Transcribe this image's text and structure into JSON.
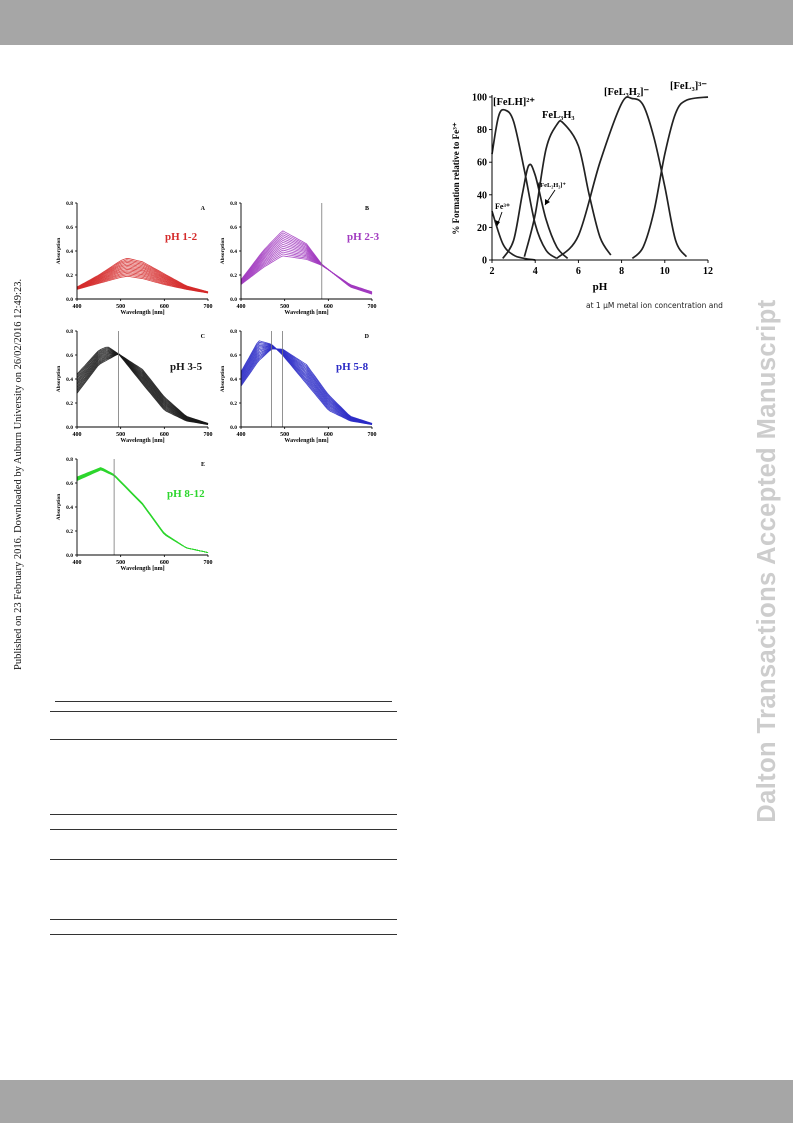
{
  "side_text": "Published on 23 February 2016. Downloaded by Auburn University on 26/02/2016 12:49:23.",
  "watermark": "Dalton Transactions Accepted Manuscript",
  "text_fragment": "at 1 µM metal ion concentration and",
  "colors": {
    "red": "#d52b2b",
    "purple": "#a23bc0",
    "black": "#1a1a1a",
    "blue": "#2b2bc6",
    "green": "#2ed62e",
    "bar": "#a6a6a6",
    "watermark": "#cdcdcd"
  },
  "spectra_panels": [
    {
      "letter": "A",
      "label": "pH 1-2",
      "color": "#d52b2b",
      "x_label": "Wavelength [nm]",
      "y_label": "Absorption",
      "x_ticks": [
        "400",
        "500",
        "600",
        "700"
      ],
      "y_ticks": [
        "0.0",
        "0.2",
        "0.4",
        "0.6",
        "0.8"
      ],
      "xlim": [
        400,
        700
      ],
      "ylim": [
        0,
        0.8
      ],
      "isosbestic_nm": []
    },
    {
      "letter": "B",
      "label": "pH 2-3",
      "color": "#a23bc0",
      "x_label": "Wavelength [nm]",
      "y_label": "Absorption",
      "x_ticks": [
        "400",
        "500",
        "600",
        "700"
      ],
      "y_ticks": [
        "0.0",
        "0.2",
        "0.4",
        "0.6",
        "0.8"
      ],
      "xlim": [
        400,
        700
      ],
      "ylim": [
        0,
        0.8
      ],
      "isosbestic_nm": [
        585
      ]
    },
    {
      "letter": "C",
      "label": "pH 3-5",
      "color": "#1a1a1a",
      "x_label": "Wavelength [nm]",
      "y_label": "Absorption",
      "x_ticks": [
        "400",
        "500",
        "600",
        "700"
      ],
      "y_ticks": [
        "0.0",
        "0.2",
        "0.4",
        "0.6",
        "0.8"
      ],
      "xlim": [
        400,
        700
      ],
      "ylim": [
        0,
        0.8
      ],
      "isosbestic_nm": [
        495
      ]
    },
    {
      "letter": "D",
      "label": "pH 5-8",
      "color": "#2b2bc6",
      "x_label": "Wavelength [nm]",
      "y_label": "Absorption",
      "x_ticks": [
        "400",
        "500",
        "600",
        "700"
      ],
      "y_ticks": [
        "0.0",
        "0.2",
        "0.4",
        "0.6",
        "0.8"
      ],
      "xlim": [
        400,
        700
      ],
      "ylim": [
        0,
        0.8
      ],
      "isosbestic_nm": [
        470,
        495
      ]
    },
    {
      "letter": "E",
      "label": "pH 8-12",
      "color": "#2ed62e",
      "x_label": "Wavelength [nm]",
      "y_label": "Absorption",
      "x_ticks": [
        "400",
        "500",
        "600",
        "700"
      ],
      "y_ticks": [
        "0.0",
        "0.2",
        "0.4",
        "0.6",
        "0.8"
      ],
      "xlim": [
        400,
        700
      ],
      "ylim": [
        0,
        0.8
      ],
      "isosbestic_nm": [
        485
      ]
    }
  ],
  "chart_data": [
    {
      "type": "line",
      "title": "A",
      "annotation": "pH 1-2",
      "xlabel": "Wavelength [nm]",
      "ylabel": "Absorption",
      "xlim": [
        400,
        700
      ],
      "ylim": [
        0,
        0.8
      ],
      "series": [
        {
          "x": [
            400,
            450,
            500,
            515,
            550,
            600,
            650,
            700
          ],
          "y": [
            0.08,
            0.13,
            0.18,
            0.19,
            0.17,
            0.12,
            0.08,
            0.05
          ]
        },
        {
          "x": [
            400,
            450,
            500,
            515,
            550,
            600,
            650,
            700
          ],
          "y": [
            0.1,
            0.2,
            0.32,
            0.34,
            0.31,
            0.21,
            0.11,
            0.06
          ]
        }
      ]
    },
    {
      "type": "line",
      "title": "B",
      "annotation": "pH 2-3",
      "xlabel": "Wavelength [nm]",
      "ylabel": "Absorption",
      "xlim": [
        400,
        700
      ],
      "ylim": [
        0,
        0.8
      ],
      "series": [
        {
          "x": [
            400,
            450,
            495,
            550,
            585,
            650,
            700
          ],
          "y": [
            0.12,
            0.26,
            0.36,
            0.33,
            0.28,
            0.12,
            0.06
          ]
        },
        {
          "x": [
            400,
            450,
            495,
            550,
            585,
            650,
            700
          ],
          "y": [
            0.16,
            0.4,
            0.57,
            0.46,
            0.29,
            0.1,
            0.04
          ]
        }
      ]
    },
    {
      "type": "line",
      "title": "C",
      "annotation": "pH 3-5",
      "xlabel": "Wavelength [nm]",
      "ylabel": "Absorption",
      "xlim": [
        400,
        700
      ],
      "ylim": [
        0,
        0.8
      ],
      "series": [
        {
          "x": [
            400,
            450,
            495,
            550,
            600,
            650,
            700
          ],
          "y": [
            0.28,
            0.52,
            0.61,
            0.48,
            0.25,
            0.09,
            0.03
          ]
        },
        {
          "x": [
            400,
            450,
            470,
            495,
            550,
            600,
            650,
            700
          ],
          "y": [
            0.44,
            0.64,
            0.67,
            0.61,
            0.36,
            0.14,
            0.05,
            0.02
          ]
        }
      ]
    },
    {
      "type": "line",
      "title": "D",
      "annotation": "pH 5-8",
      "xlabel": "Wavelength [nm]",
      "ylabel": "Absorption",
      "xlim": [
        400,
        700
      ],
      "ylim": [
        0,
        0.8
      ],
      "series": [
        {
          "x": [
            400,
            440,
            470,
            495,
            550,
            600,
            650,
            700
          ],
          "y": [
            0.46,
            0.72,
            0.69,
            0.6,
            0.36,
            0.14,
            0.05,
            0.02
          ]
        },
        {
          "x": [
            400,
            440,
            470,
            495,
            550,
            600,
            650,
            700
          ],
          "y": [
            0.34,
            0.55,
            0.65,
            0.65,
            0.52,
            0.27,
            0.09,
            0.03
          ]
        }
      ]
    },
    {
      "type": "line",
      "title": "E",
      "annotation": "pH 8-12",
      "xlabel": "Wavelength [nm]",
      "ylabel": "Absorption",
      "xlim": [
        400,
        700
      ],
      "ylim": [
        0,
        0.8
      ],
      "series": [
        {
          "x": [
            400,
            455,
            485,
            550,
            600,
            650,
            700
          ],
          "y": [
            0.62,
            0.71,
            0.66,
            0.42,
            0.17,
            0.06,
            0.02
          ]
        },
        {
          "x": [
            400,
            455,
            485,
            550,
            600,
            650,
            700
          ],
          "y": [
            0.65,
            0.73,
            0.67,
            0.43,
            0.18,
            0.06,
            0.02
          ]
        }
      ]
    },
    {
      "type": "line",
      "ylabel": "% Formation relative to Fe³⁺",
      "xlabel": "pH",
      "xlim": [
        2,
        12
      ],
      "ylim": [
        0,
        100
      ],
      "x_ticks": [
        "2",
        "4",
        "6",
        "8",
        "10",
        "12"
      ],
      "y_ticks": [
        "0",
        "20",
        "40",
        "60",
        "80",
        "100"
      ],
      "species_labels": [
        "Fe³⁺",
        "[FeLH]²⁺",
        "[FeL₂H₂]⁺",
        "FeL₃H₃",
        "[FeL₃H₂]⁻",
        "[FeL₃]³⁻"
      ],
      "series": [
        {
          "x": [
            2,
            2.5,
            3,
            3.5,
            4
          ],
          "y": [
            30,
            10,
            3,
            1,
            0
          ]
        },
        {
          "x": [
            2,
            2.3,
            2.6,
            3,
            3.5,
            4,
            4.5,
            5
          ],
          "y": [
            65,
            88,
            92,
            85,
            55,
            22,
            6,
            1
          ]
        },
        {
          "x": [
            2.5,
            3,
            3.4,
            3.7,
            4,
            4.5,
            5,
            5.5
          ],
          "y": [
            1,
            12,
            40,
            58,
            52,
            25,
            8,
            1
          ]
        },
        {
          "x": [
            3.5,
            4,
            4.5,
            5,
            5.3,
            6,
            6.5,
            7,
            7.5
          ],
          "y": [
            2,
            28,
            68,
            83,
            84,
            70,
            40,
            14,
            3
          ]
        },
        {
          "x": [
            5,
            6,
            7,
            8,
            8.5,
            9,
            9.5,
            10,
            10.5,
            11
          ],
          "y": [
            1,
            15,
            60,
            96,
            99,
            95,
            75,
            45,
            12,
            2
          ]
        },
        {
          "x": [
            8.5,
            9,
            9.5,
            10,
            10.5,
            11,
            12
          ],
          "y": [
            1,
            8,
            30,
            65,
            90,
            98,
            100
          ]
        }
      ]
    }
  ]
}
